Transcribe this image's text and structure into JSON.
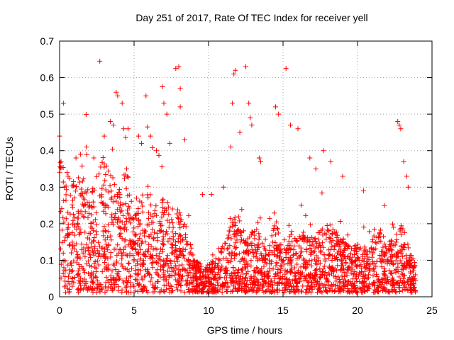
{
  "chart_data": {
    "type": "scatter",
    "title": "Day 251 of 2017, Rate Of TEC Index for receiver yell",
    "xlabel": "GPS time / hours",
    "ylabel": "ROTI / TECUs",
    "xlim": [
      0,
      25
    ],
    "ylim": [
      0,
      0.7
    ],
    "x_ticks": [
      0,
      5,
      10,
      15,
      20,
      25
    ],
    "y_ticks": [
      0,
      0.1,
      0.2,
      0.3,
      0.4,
      0.5,
      0.6,
      0.7
    ],
    "x_tick_labels": [
      "0",
      "5",
      "10",
      "15",
      "20",
      "25"
    ],
    "y_tick_labels": [
      "0",
      "0.1",
      "0.2",
      "0.3",
      "0.4",
      "0.5",
      "0.6",
      "0.7"
    ],
    "grid": true,
    "marker": "plus",
    "marker_color": "#ff0000",
    "series": [
      {
        "name": "ROTI",
        "density_profile": [
          [
            0.0,
            0.2
          ],
          [
            0.5,
            0.17
          ],
          [
            1.0,
            0.16
          ],
          [
            1.5,
            0.17
          ],
          [
            2.0,
            0.15
          ],
          [
            2.5,
            0.17
          ],
          [
            3.0,
            0.2
          ],
          [
            3.5,
            0.17
          ],
          [
            4.0,
            0.15
          ],
          [
            4.5,
            0.18
          ],
          [
            5.0,
            0.12
          ],
          [
            5.5,
            0.14
          ],
          [
            6.0,
            0.15
          ],
          [
            6.5,
            0.13
          ],
          [
            7.0,
            0.14
          ],
          [
            7.5,
            0.13
          ],
          [
            8.0,
            0.12
          ],
          [
            8.5,
            0.1
          ],
          [
            9.0,
            0.05
          ],
          [
            9.5,
            0.04
          ],
          [
            10.0,
            0.04
          ],
          [
            10.5,
            0.05
          ],
          [
            11.0,
            0.07
          ],
          [
            11.5,
            0.12
          ],
          [
            12.0,
            0.1
          ],
          [
            12.5,
            0.07
          ],
          [
            13.0,
            0.1
          ],
          [
            13.5,
            0.08
          ],
          [
            14.0,
            0.06
          ],
          [
            14.5,
            0.11
          ],
          [
            15.0,
            0.06
          ],
          [
            15.5,
            0.09
          ],
          [
            16.0,
            0.08
          ],
          [
            16.5,
            0.09
          ],
          [
            17.0,
            0.08
          ],
          [
            17.5,
            0.09
          ],
          [
            18.0,
            0.1
          ],
          [
            18.5,
            0.09
          ],
          [
            19.0,
            0.08
          ],
          [
            19.5,
            0.07
          ],
          [
            20.0,
            0.07
          ],
          [
            20.5,
            0.06
          ],
          [
            21.0,
            0.08
          ],
          [
            21.5,
            0.09
          ],
          [
            22.0,
            0.07
          ],
          [
            22.5,
            0.08
          ],
          [
            23.0,
            0.1
          ],
          [
            23.5,
            0.06
          ],
          [
            23.9,
            0.04
          ]
        ],
        "outliers": [
          [
            0.0,
            0.44
          ],
          [
            0.1,
            0.37
          ],
          [
            0.5,
            0.34
          ],
          [
            1.1,
            0.38
          ],
          [
            1.4,
            0.39
          ],
          [
            1.8,
            0.41
          ],
          [
            2.3,
            0.38
          ],
          [
            2.7,
            0.645
          ],
          [
            3.0,
            0.44
          ],
          [
            3.4,
            0.48
          ],
          [
            3.6,
            0.47
          ],
          [
            3.8,
            0.56
          ],
          [
            3.9,
            0.55
          ],
          [
            4.2,
            0.53
          ],
          [
            4.3,
            0.46
          ],
          [
            4.6,
            0.46
          ],
          [
            5.3,
            0.44
          ],
          [
            5.5,
            0.42
          ],
          [
            5.8,
            0.55
          ],
          [
            6.1,
            0.44
          ],
          [
            6.5,
            0.4
          ],
          [
            6.9,
            0.575
          ],
          [
            7.0,
            0.53
          ],
          [
            7.2,
            0.5
          ],
          [
            7.4,
            0.42
          ],
          [
            7.8,
            0.625
          ],
          [
            8.0,
            0.63
          ],
          [
            8.1,
            0.57
          ],
          [
            8.1,
            0.52
          ],
          [
            8.4,
            0.43
          ],
          [
            9.6,
            0.28
          ],
          [
            10.2,
            0.28
          ],
          [
            11.0,
            0.3
          ],
          [
            11.5,
            0.41
          ],
          [
            11.6,
            0.53
          ],
          [
            11.7,
            0.61
          ],
          [
            11.8,
            0.62
          ],
          [
            12.1,
            0.45
          ],
          [
            12.5,
            0.63
          ],
          [
            12.7,
            0.53
          ],
          [
            12.8,
            0.49
          ],
          [
            12.9,
            0.47
          ],
          [
            13.4,
            0.38
          ],
          [
            13.5,
            0.37
          ],
          [
            14.5,
            0.52
          ],
          [
            14.7,
            0.5
          ],
          [
            15.2,
            0.625
          ],
          [
            15.5,
            0.47
          ],
          [
            16.0,
            0.46
          ],
          [
            16.8,
            0.38
          ],
          [
            17.2,
            0.35
          ],
          [
            17.7,
            0.4
          ],
          [
            18.2,
            0.37
          ],
          [
            19.0,
            0.33
          ],
          [
            20.4,
            0.29
          ],
          [
            21.8,
            0.25
          ],
          [
            22.7,
            0.48
          ],
          [
            22.8,
            0.47
          ],
          [
            22.9,
            0.46
          ],
          [
            23.1,
            0.37
          ],
          [
            23.3,
            0.33
          ],
          [
            23.4,
            0.3
          ]
        ]
      }
    ]
  }
}
